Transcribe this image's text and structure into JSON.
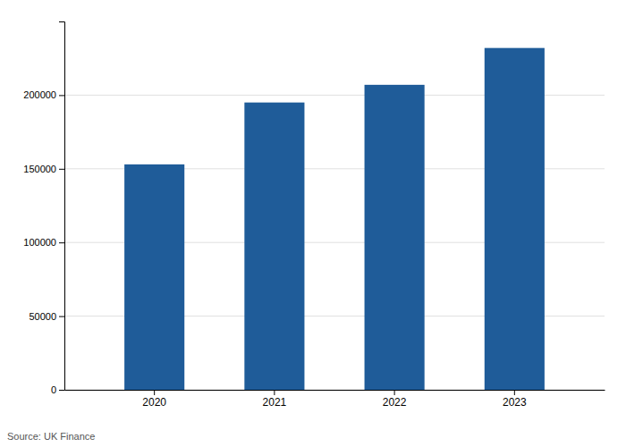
{
  "chart_data": {
    "type": "bar",
    "categories": [
      "2020",
      "2021",
      "2022",
      "2023"
    ],
    "values": [
      153000,
      195000,
      207000,
      232000
    ],
    "color": "#1f5c99",
    "ylim": [
      0,
      250000
    ],
    "yticks": [
      0,
      50000,
      100000,
      150000,
      200000
    ],
    "grid": true,
    "annotations": [
      "Source: UK Finance"
    ]
  }
}
